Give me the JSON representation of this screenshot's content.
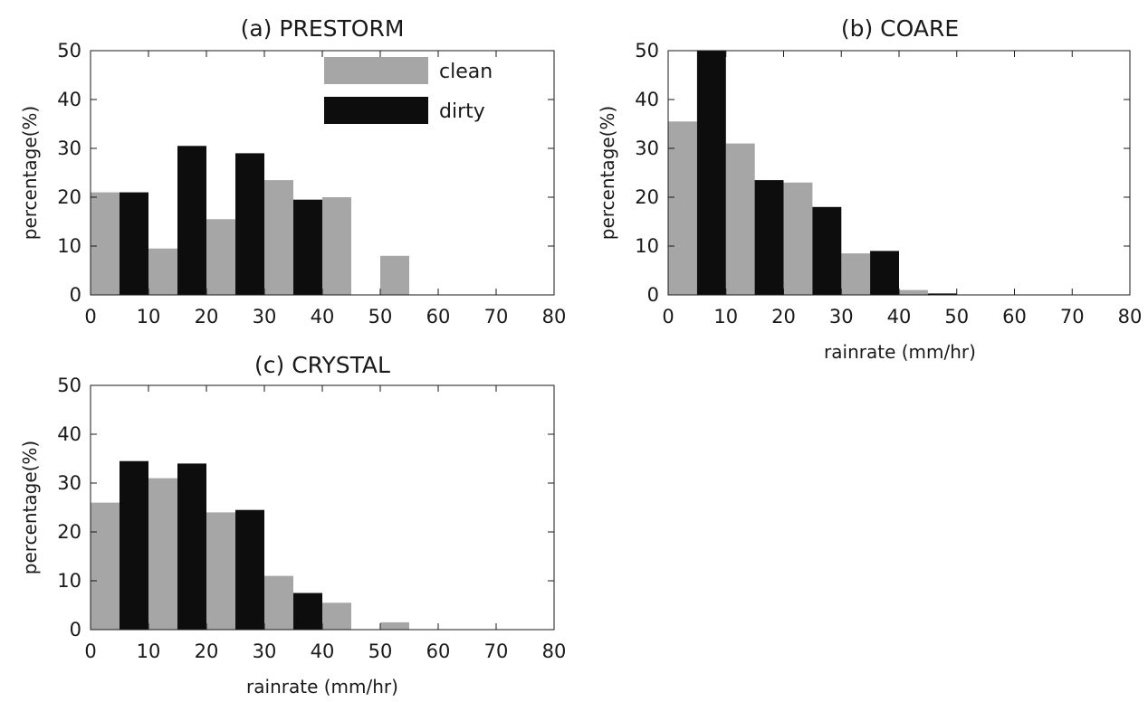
{
  "colors": {
    "clean": "#a6a6a6",
    "dirty": "#0d0d0d",
    "axis": "#1a1a1a"
  },
  "chart_data": [
    {
      "type": "bar",
      "title": "(a) PRESTORM",
      "xlabel": "",
      "ylabel": "percentage(%)",
      "xlim": [
        0,
        80
      ],
      "ylim": [
        0,
        50
      ],
      "xticks": [
        "0",
        "10",
        "20",
        "30",
        "40",
        "50",
        "60",
        "70",
        "80"
      ],
      "yticks": [
        "0",
        "10",
        "20",
        "30",
        "40",
        "50"
      ],
      "bin_width": 5,
      "legend": {
        "position": "top-right",
        "entries": [
          "clean",
          "dirty"
        ]
      },
      "series": [
        {
          "name": "clean",
          "x": [
            0,
            10,
            20,
            30,
            40,
            50
          ],
          "values": [
            21,
            9.5,
            15.5,
            23.5,
            20,
            8
          ]
        },
        {
          "name": "dirty",
          "x": [
            5,
            15,
            25,
            35
          ],
          "values": [
            21,
            30.5,
            29,
            19.5
          ]
        }
      ]
    },
    {
      "type": "bar",
      "title": "(b) COARE",
      "xlabel": "rainrate (mm/hr)",
      "ylabel": "percentage(%)",
      "xlim": [
        0,
        80
      ],
      "ylim": [
        0,
        50
      ],
      "xticks": [
        "0",
        "10",
        "20",
        "30",
        "40",
        "50",
        "60",
        "70",
        "80"
      ],
      "yticks": [
        "0",
        "10",
        "20",
        "30",
        "40",
        "50"
      ],
      "bin_width": 5,
      "series": [
        {
          "name": "clean",
          "x": [
            0,
            10,
            20,
            30,
            40
          ],
          "values": [
            35.5,
            31,
            23,
            8.5,
            1
          ]
        },
        {
          "name": "dirty",
          "x": [
            5,
            15,
            25,
            35,
            45
          ],
          "values": [
            50,
            23.5,
            18,
            9,
            0.3
          ]
        }
      ]
    },
    {
      "type": "bar",
      "title": "(c) CRYSTAL",
      "xlabel": "rainrate (mm/hr)",
      "ylabel": "percentage(%)",
      "xlim": [
        0,
        80
      ],
      "ylim": [
        0,
        50
      ],
      "xticks": [
        "0",
        "10",
        "20",
        "30",
        "40",
        "50",
        "60",
        "70",
        "80"
      ],
      "yticks": [
        "0",
        "10",
        "20",
        "30",
        "40",
        "50"
      ],
      "bin_width": 5,
      "series": [
        {
          "name": "clean",
          "x": [
            0,
            10,
            20,
            30,
            40,
            50
          ],
          "values": [
            26,
            31,
            24,
            11,
            5.5,
            1.5
          ]
        },
        {
          "name": "dirty",
          "x": [
            5,
            15,
            25,
            35
          ],
          "values": [
            34.5,
            34,
            24.5,
            7.5
          ]
        }
      ]
    }
  ]
}
